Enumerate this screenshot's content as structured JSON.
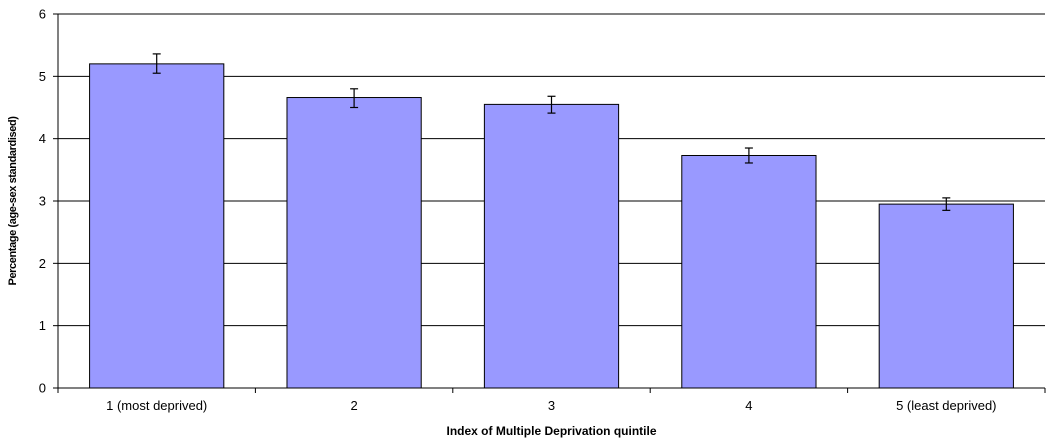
{
  "chart_data": {
    "type": "bar",
    "title": "",
    "xlabel": "Index of Multiple Deprivation quintile",
    "ylabel": "Percentage (age-sex standardised)",
    "categories": [
      "1 (most deprived)",
      "2",
      "3",
      "4",
      "5 (least deprived)"
    ],
    "values": [
      5.2,
      4.66,
      4.55,
      3.73,
      2.95
    ],
    "error_bars": [
      {
        "low": 5.05,
        "high": 5.36
      },
      {
        "low": 4.5,
        "high": 4.8
      },
      {
        "low": 4.41,
        "high": 4.68
      },
      {
        "low": 3.61,
        "high": 3.85
      },
      {
        "low": 2.85,
        "high": 3.05
      }
    ],
    "ylim": [
      0,
      6
    ],
    "yticks": [
      0,
      1,
      2,
      3,
      4,
      5,
      6
    ],
    "grid": true,
    "legend": "none",
    "colors": {
      "bar_fill": "#9999ff",
      "bar_stroke": "#000000",
      "grid": "#000000"
    }
  }
}
